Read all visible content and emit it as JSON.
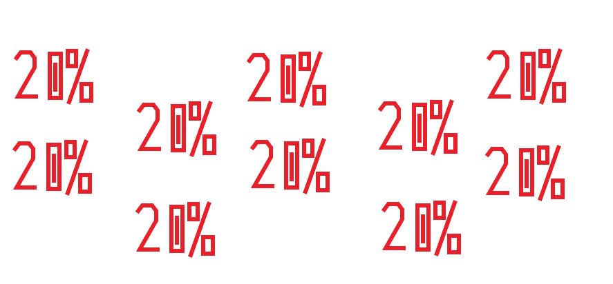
{
  "color": "#e8202a",
  "labels": [
    "20%",
    "20%",
    "20%",
    "20%",
    "20%",
    "20%",
    "20%",
    "20%",
    "20%",
    "20%"
  ]
}
